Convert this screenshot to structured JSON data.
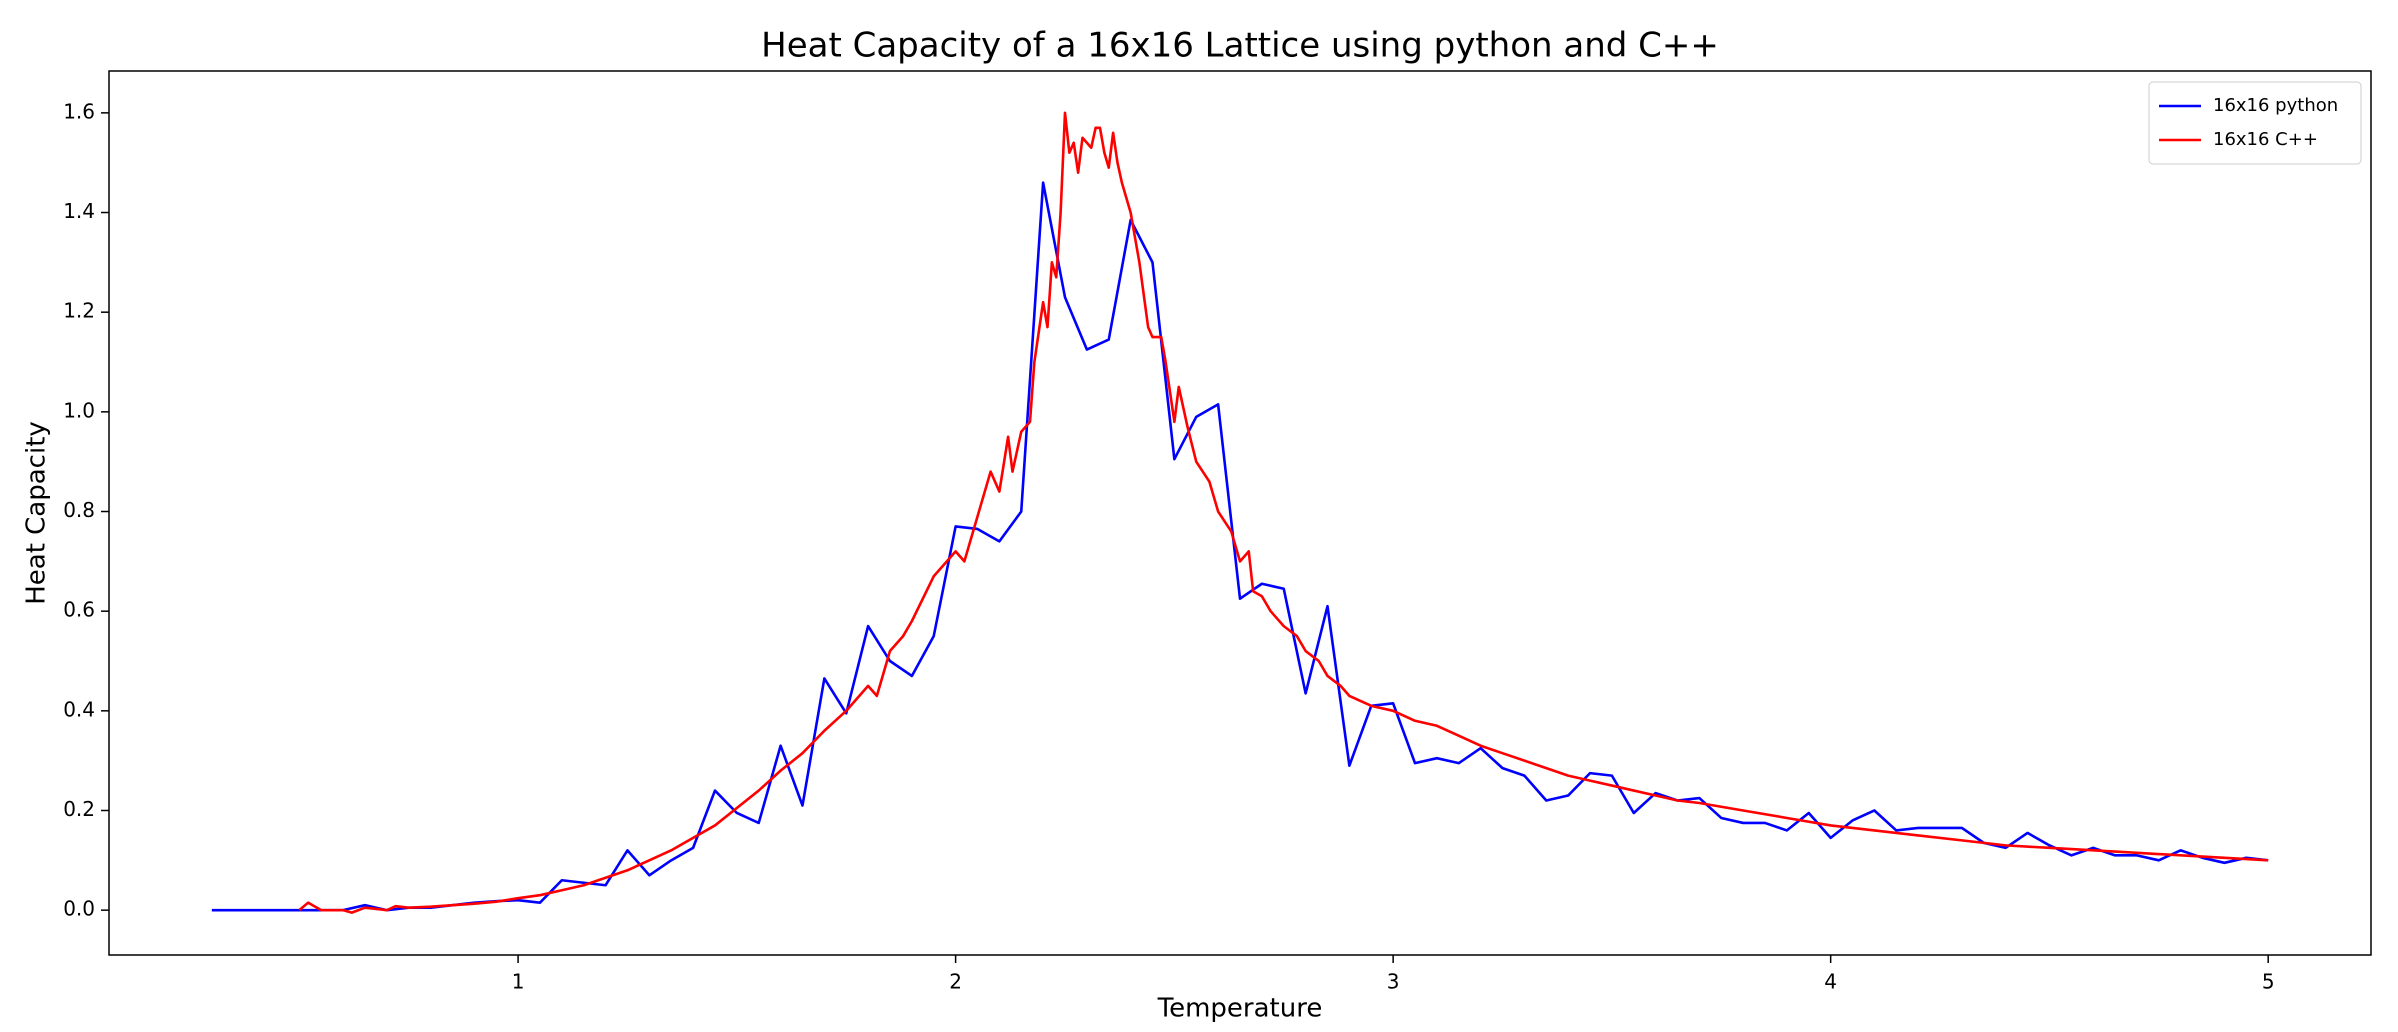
{
  "chart_data": {
    "type": "line",
    "title": "Heat Capacity of a 16x16 Lattice using python and C++",
    "xlabel": "Temperature",
    "ylabel": "Heat Capacity",
    "xlim": [
      0.065,
      5.235
    ],
    "ylim": [
      -0.09,
      1.684
    ],
    "xticks": [
      1,
      2,
      3,
      4,
      5
    ],
    "yticks": [
      {
        "value": 0,
        "label": "0.0"
      },
      0.2,
      0.4,
      0.6,
      0.8,
      {
        "value": 1,
        "label": "1.0"
      },
      1.2,
      1.4,
      1.6
    ],
    "legend": "upper right",
    "series": [
      {
        "name": "16x16 python",
        "color": "#0000ff",
        "x": [
          0.3,
          0.35,
          0.4,
          0.45,
          0.5,
          0.55,
          0.6,
          0.65,
          0.7,
          0.75,
          0.8,
          0.85,
          0.9,
          0.95,
          1.0,
          1.05,
          1.1,
          1.15,
          1.2,
          1.25,
          1.3,
          1.35,
          1.4,
          1.45,
          1.5,
          1.55,
          1.6,
          1.65,
          1.7,
          1.75,
          1.8,
          1.85,
          1.9,
          1.95,
          2.0,
          2.05,
          2.1,
          2.15,
          2.2,
          2.25,
          2.3,
          2.35,
          2.4,
          2.45,
          2.5,
          2.55,
          2.6,
          2.65,
          2.7,
          2.75,
          2.8,
          2.85,
          2.9,
          2.95,
          3.0,
          3.05,
          3.1,
          3.15,
          3.2,
          3.25,
          3.3,
          3.35,
          3.4,
          3.45,
          3.5,
          3.55,
          3.6,
          3.65,
          3.7,
          3.75,
          3.8,
          3.85,
          3.9,
          3.95,
          4.0,
          4.05,
          4.1,
          4.15,
          4.2,
          4.25,
          4.3,
          4.35,
          4.4,
          4.45,
          4.5,
          4.55,
          4.6,
          4.65,
          4.7,
          4.75,
          4.8,
          4.85,
          4.9,
          4.95,
          5.0
        ],
        "values": [
          0,
          0,
          0,
          0,
          0,
          0,
          0,
          0.01,
          0,
          0.005,
          0.005,
          0.01,
          0.015,
          0.018,
          0.02,
          0.015,
          0.06,
          0.055,
          0.05,
          0.12,
          0.07,
          0.1,
          0.125,
          0.24,
          0.195,
          0.175,
          0.33,
          0.21,
          0.465,
          0.395,
          0.57,
          0.5,
          0.47,
          0.55,
          0.77,
          0.765,
          0.74,
          0.8,
          1.46,
          1.23,
          1.125,
          1.145,
          1.385,
          1.3,
          0.905,
          0.99,
          1.015,
          0.625,
          0.655,
          0.645,
          0.435,
          0.61,
          0.29,
          0.41,
          0.415,
          0.295,
          0.305,
          0.295,
          0.325,
          0.285,
          0.27,
          0.22,
          0.23,
          0.275,
          0.27,
          0.195,
          0.235,
          0.22,
          0.225,
          0.185,
          0.175,
          0.175,
          0.16,
          0.195,
          0.145,
          0.18,
          0.2,
          0.16,
          0.165,
          0.165,
          0.165,
          0.135,
          0.125,
          0.155,
          0.13,
          0.11,
          0.125,
          0.11,
          0.11,
          0.1,
          0.12,
          0.105,
          0.095,
          0.105,
          0.1
        ]
      },
      {
        "name": "16x16 C++",
        "color": "#ff0000",
        "x": [
          0.5,
          0.52,
          0.55,
          0.6,
          0.62,
          0.65,
          0.7,
          0.72,
          0.75,
          0.8,
          0.85,
          0.9,
          0.95,
          1.0,
          1.05,
          1.1,
          1.15,
          1.2,
          1.25,
          1.3,
          1.35,
          1.4,
          1.45,
          1.5,
          1.55,
          1.6,
          1.65,
          1.7,
          1.75,
          1.8,
          1.82,
          1.85,
          1.88,
          1.9,
          1.95,
          2.0,
          2.02,
          2.05,
          2.08,
          2.1,
          2.12,
          2.13,
          2.15,
          2.17,
          2.18,
          2.2,
          2.21,
          2.22,
          2.23,
          2.24,
          2.25,
          2.26,
          2.27,
          2.28,
          2.29,
          2.31,
          2.32,
          2.33,
          2.34,
          2.35,
          2.36,
          2.37,
          2.38,
          2.4,
          2.42,
          2.44,
          2.45,
          2.47,
          2.48,
          2.5,
          2.51,
          2.53,
          2.55,
          2.58,
          2.6,
          2.63,
          2.65,
          2.67,
          2.68,
          2.7,
          2.72,
          2.75,
          2.78,
          2.8,
          2.83,
          2.85,
          2.88,
          2.9,
          2.95,
          3.0,
          3.05,
          3.1,
          3.15,
          3.2,
          3.25,
          3.3,
          3.35,
          3.4,
          3.45,
          3.5,
          3.55,
          3.6,
          3.65,
          3.7,
          3.8,
          3.9,
          4.0,
          4.1,
          4.2,
          4.3,
          4.4,
          4.5,
          4.6,
          4.7,
          4.8,
          4.9,
          5.0
        ],
        "values": [
          0,
          0.015,
          0,
          0,
          -0.005,
          0.005,
          0,
          0.008,
          0.005,
          0.007,
          0.01,
          0.013,
          0.017,
          0.024,
          0.03,
          0.04,
          0.05,
          0.065,
          0.08,
          0.1,
          0.12,
          0.145,
          0.17,
          0.205,
          0.24,
          0.28,
          0.315,
          0.36,
          0.4,
          0.45,
          0.43,
          0.52,
          0.55,
          0.58,
          0.67,
          0.72,
          0.7,
          0.79,
          0.88,
          0.84,
          0.95,
          0.88,
          0.96,
          0.98,
          1.1,
          1.22,
          1.17,
          1.3,
          1.27,
          1.4,
          1.6,
          1.52,
          1.54,
          1.48,
          1.55,
          1.53,
          1.57,
          1.57,
          1.52,
          1.49,
          1.56,
          1.5,
          1.46,
          1.4,
          1.3,
          1.17,
          1.15,
          1.15,
          1.1,
          0.98,
          1.05,
          0.97,
          0.9,
          0.86,
          0.8,
          0.76,
          0.7,
          0.72,
          0.64,
          0.63,
          0.6,
          0.57,
          0.55,
          0.52,
          0.5,
          0.47,
          0.45,
          0.43,
          0.41,
          0.4,
          0.38,
          0.37,
          0.35,
          0.33,
          0.315,
          0.3,
          0.285,
          0.27,
          0.26,
          0.25,
          0.24,
          0.23,
          0.22,
          0.215,
          0.2,
          0.185,
          0.17,
          0.16,
          0.15,
          0.14,
          0.13,
          0.125,
          0.12,
          0.115,
          0.11,
          0.105,
          0.1
        ]
      }
    ]
  }
}
